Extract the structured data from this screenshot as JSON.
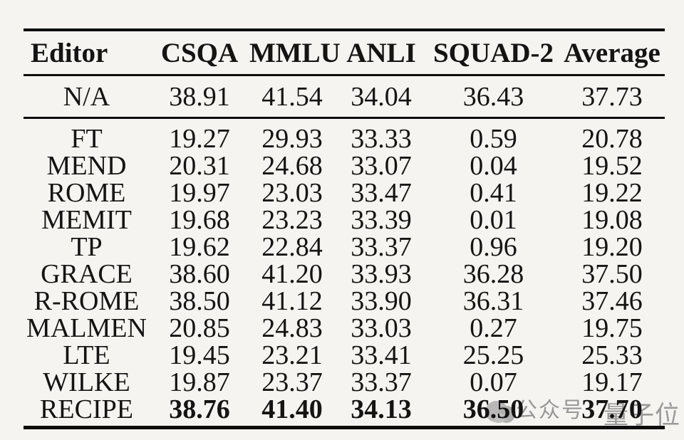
{
  "page": {
    "background_color": "#f5f4f1",
    "rule_color": "#0d0d0d",
    "text_color": "#141414"
  },
  "table": {
    "columns": [
      "Editor",
      "CSQA",
      "MMLU",
      "ANLI",
      "SQUAD-2",
      "Average"
    ],
    "baseline_rows": [
      {
        "editor": "N/A",
        "values": [
          "38.91",
          "41.54",
          "34.04",
          "36.43",
          "37.73"
        ],
        "bold_values": false
      }
    ],
    "method_rows": [
      {
        "editor": "FT",
        "values": [
          "19.27",
          "29.93",
          "33.33",
          "0.59",
          "20.78"
        ],
        "bold_values": false
      },
      {
        "editor": "MEND",
        "values": [
          "20.31",
          "24.68",
          "33.07",
          "0.04",
          "19.52"
        ],
        "bold_values": false
      },
      {
        "editor": "ROME",
        "values": [
          "19.97",
          "23.03",
          "33.47",
          "0.41",
          "19.22"
        ],
        "bold_values": false
      },
      {
        "editor": "MEMIT",
        "values": [
          "19.68",
          "23.23",
          "33.39",
          "0.01",
          "19.08"
        ],
        "bold_values": false
      },
      {
        "editor": "TP",
        "values": [
          "19.62",
          "22.84",
          "33.37",
          "0.96",
          "19.20"
        ],
        "bold_values": false
      },
      {
        "editor": "GRACE",
        "values": [
          "38.60",
          "41.20",
          "33.93",
          "36.28",
          "37.50"
        ],
        "bold_values": false
      },
      {
        "editor": "R-ROME",
        "values": [
          "38.50",
          "41.12",
          "33.90",
          "36.31",
          "37.46"
        ],
        "bold_values": false
      },
      {
        "editor": "MALMEN",
        "values": [
          "20.85",
          "24.83",
          "33.03",
          "0.27",
          "19.75"
        ],
        "bold_values": false
      },
      {
        "editor": "LTE",
        "values": [
          "19.45",
          "23.21",
          "33.41",
          "25.25",
          "25.33"
        ],
        "bold_values": false
      },
      {
        "editor": "WILKE",
        "values": [
          "19.87",
          "23.37",
          "33.37",
          "0.07",
          "19.17"
        ],
        "bold_values": false
      },
      {
        "editor": "RECIPE",
        "values": [
          "38.76",
          "41.40",
          "34.13",
          "36.50",
          "37.70"
        ],
        "bold_values": true
      }
    ]
  },
  "watermark": {
    "label": "公众号",
    "brand": "量子位",
    "color": "#9a9a9a"
  }
}
